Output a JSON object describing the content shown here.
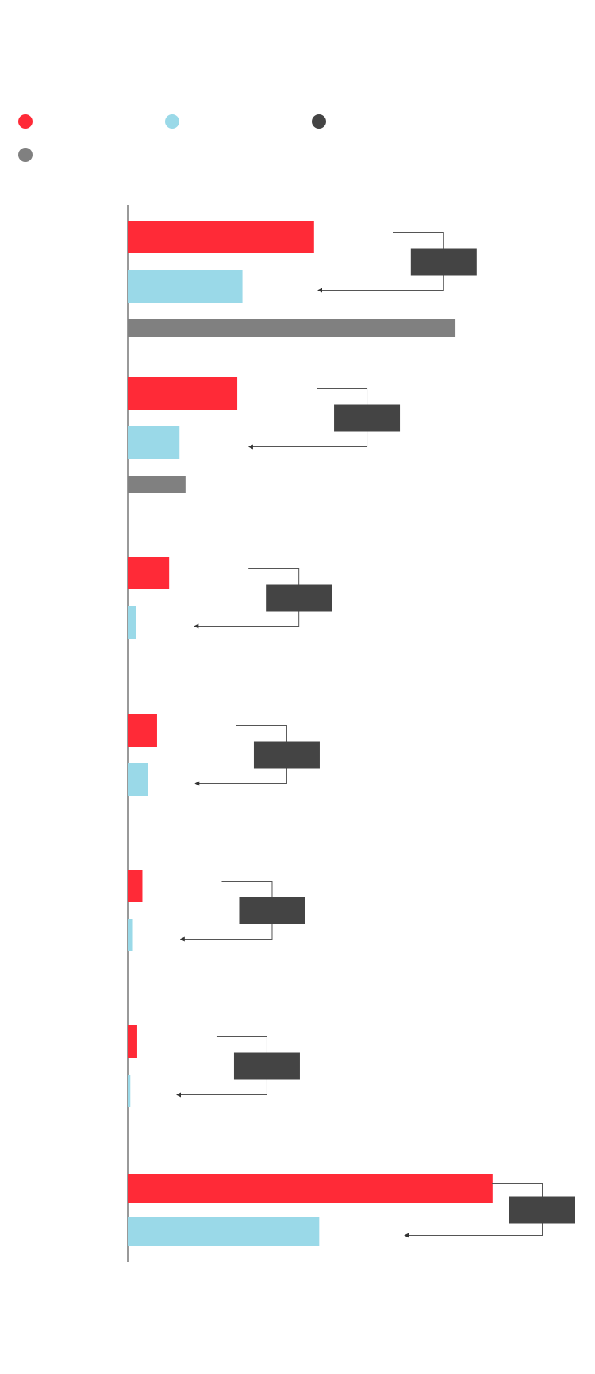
{
  "chart_data": {
    "type": "bar",
    "orientation": "horizontal",
    "categories": [
      null,
      null,
      null,
      null,
      null,
      null,
      null
    ],
    "xlim": [
      0,
      540
    ],
    "series": [
      {
        "color": "#ff2a37",
        "values": [
          216,
          127,
          48,
          34,
          17,
          11,
          423
        ]
      },
      {
        "color": "#9ad9e8",
        "values": [
          133,
          60,
          10,
          23,
          6,
          3,
          222
        ]
      },
      {
        "color": "#444444",
        "values": [
          null,
          null,
          null,
          null,
          null,
          null,
          null
        ]
      },
      {
        "color": "#808080",
        "values": [
          380,
          67,
          null,
          null,
          null,
          null,
          null
        ]
      }
    ]
  }
}
